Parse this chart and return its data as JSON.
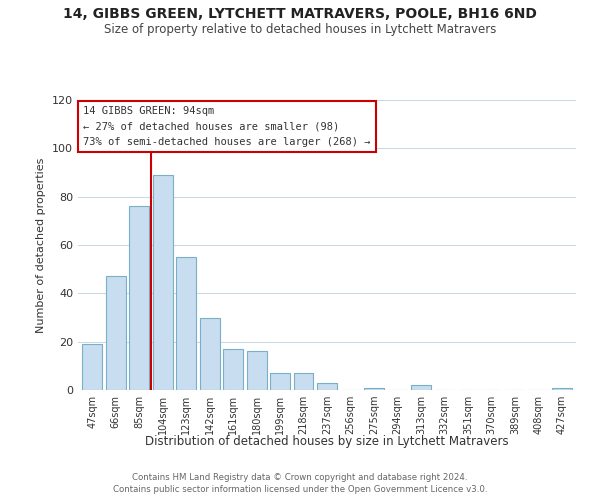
{
  "title": "14, GIBBS GREEN, LYTCHETT MATRAVERS, POOLE, BH16 6ND",
  "subtitle": "Size of property relative to detached houses in Lytchett Matravers",
  "xlabel": "Distribution of detached houses by size in Lytchett Matravers",
  "ylabel": "Number of detached properties",
  "bar_labels": [
    "47sqm",
    "66sqm",
    "85sqm",
    "104sqm",
    "123sqm",
    "142sqm",
    "161sqm",
    "180sqm",
    "199sqm",
    "218sqm",
    "237sqm",
    "256sqm",
    "275sqm",
    "294sqm",
    "313sqm",
    "332sqm",
    "351sqm",
    "370sqm",
    "389sqm",
    "408sqm",
    "427sqm"
  ],
  "bar_values": [
    19,
    47,
    76,
    89,
    55,
    30,
    17,
    16,
    7,
    7,
    3,
    0,
    1,
    0,
    2,
    0,
    0,
    0,
    0,
    0,
    1
  ],
  "bar_color": "#c8ddef",
  "bar_edge_color": "#7aafc8",
  "vline_x": 2.5,
  "vline_color": "#cc0000",
  "ylim": [
    0,
    120
  ],
  "yticks": [
    0,
    20,
    40,
    60,
    80,
    100,
    120
  ],
  "annotation_title": "14 GIBBS GREEN: 94sqm",
  "annotation_line1": "← 27% of detached houses are smaller (98)",
  "annotation_line2": "73% of semi-detached houses are larger (268) →",
  "annotation_box_color": "#ffffff",
  "annotation_box_edge": "#cc0000",
  "footer1": "Contains HM Land Registry data © Crown copyright and database right 2024.",
  "footer2": "Contains public sector information licensed under the Open Government Licence v3.0.",
  "background_color": "#ffffff",
  "grid_color": "#c8d8e4"
}
